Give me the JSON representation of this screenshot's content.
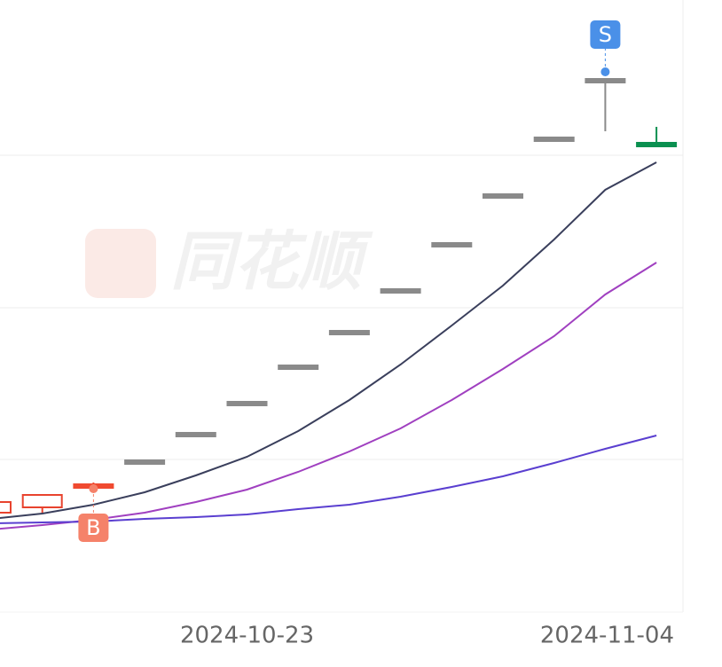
{
  "chart_data": {
    "type": "candlestick",
    "watermark": "同花顺",
    "categories": [
      null,
      null,
      null,
      null,
      null,
      "2024-10-23",
      null,
      null,
      null,
      null,
      null,
      null,
      null,
      "2024-11-04"
    ],
    "open": [
      122,
      128,
      149,
      179,
      210,
      245,
      286,
      325,
      372,
      424,
      479,
      543,
      609,
      537
    ],
    "high": [
      134,
      142,
      156,
      179,
      210,
      245,
      286,
      325,
      372,
      424,
      479,
      543,
      609,
      557
    ],
    "low": [
      122,
      122,
      149,
      179,
      210,
      245,
      286,
      325,
      372,
      424,
      479,
      543,
      552,
      537
    ],
    "close": [
      134,
      142,
      152,
      179,
      210,
      245,
      286,
      325,
      372,
      424,
      479,
      543,
      609,
      537
    ],
    "colors": [
      "#e8432e",
      "#e8432e",
      "#f04a30",
      "#8a8a8a",
      "#8a8a8a",
      "#8a8a8a",
      "#8a8a8a",
      "#8a8a8a",
      "#8a8a8a",
      "#8a8a8a",
      "#8a8a8a",
      "#8a8a8a",
      "#8a8a8a",
      "#0a9050"
    ],
    "series": [
      {
        "color": "#3a3f5c",
        "values": [
          115,
          121,
          131,
          145,
          164,
          185,
          214,
          249,
          289,
          333,
          378,
          430,
          486,
          517
        ]
      },
      {
        "color": "#a040c0",
        "values": [
          103,
          108,
          114,
          122,
          134,
          148,
          168,
          191,
          217,
          249,
          284,
          321,
          368,
          404
        ]
      },
      {
        "color": "#5a3fd0",
        "values": [
          110,
          111,
          112,
          115,
          117,
          120,
          126,
          131,
          140,
          151,
          163,
          178,
          194,
          209
        ]
      }
    ],
    "markers": [
      {
        "index": 2,
        "label": "B",
        "color": "#f5826a",
        "position": "below"
      },
      {
        "index": 12,
        "label": "S",
        "color": "#4a90e8",
        "position": "above"
      }
    ],
    "ylim": [
      0,
      700
    ],
    "grid_lines": [
      182,
      353,
      525
    ]
  }
}
